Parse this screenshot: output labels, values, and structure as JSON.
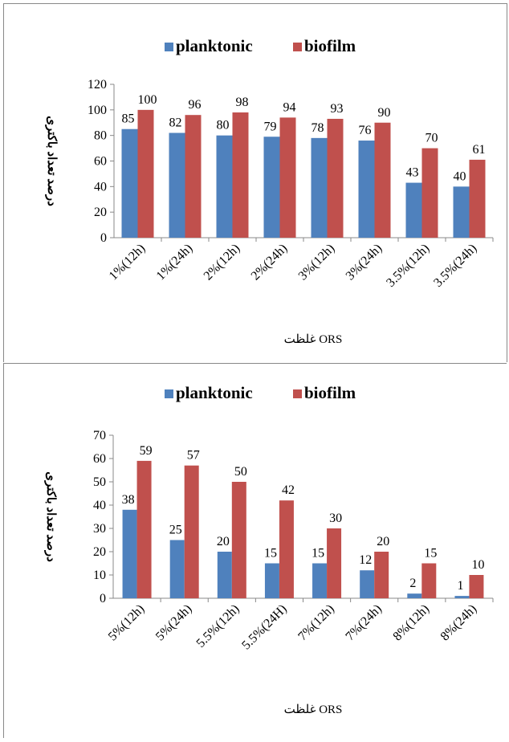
{
  "chart_data": [
    {
      "type": "bar",
      "title": "",
      "xlabel": "غلظت  ORS",
      "ylabel": "درصد تعداد باکتری",
      "ylim": [
        0,
        120
      ],
      "yticks": [
        0,
        20,
        40,
        60,
        80,
        100,
        120
      ],
      "legend_position": "top",
      "categories": [
        "1%(12h)",
        "1%(24h)",
        "2%(12h)",
        "2%(24h)",
        "3%(12h)",
        "3%(24h)",
        "3.5%(12h)",
        "3.5%(24h)"
      ],
      "series": [
        {
          "name": "planktonic",
          "color": "#4f81bd",
          "values": [
            85,
            82,
            80,
            79,
            78,
            76,
            43,
            40
          ]
        },
        {
          "name": "biofilm",
          "color": "#c0504d",
          "values": [
            100,
            96,
            98,
            94,
            93,
            90,
            70,
            61
          ]
        }
      ]
    },
    {
      "type": "bar",
      "title": "",
      "xlabel": "غلظت ORS",
      "ylabel": "درصد تعداد باکتری",
      "ylim": [
        0,
        70
      ],
      "yticks": [
        0,
        10,
        20,
        30,
        40,
        50,
        60,
        70
      ],
      "legend_position": "top",
      "categories": [
        "5%(12h)",
        "5%(24h)",
        "5.5%(12h)",
        "5.5%(24H)",
        "7%(12h)",
        "7%(24h)",
        "8%(12h)",
        "8%(24h)"
      ],
      "series": [
        {
          "name": "planktonic",
          "color": "#4f81bd",
          "values": [
            38,
            25,
            20,
            15,
            15,
            12,
            2,
            1
          ]
        },
        {
          "name": "biofilm",
          "color": "#c0504d",
          "values": [
            59,
            57,
            50,
            42,
            30,
            20,
            15,
            10
          ]
        }
      ]
    }
  ]
}
